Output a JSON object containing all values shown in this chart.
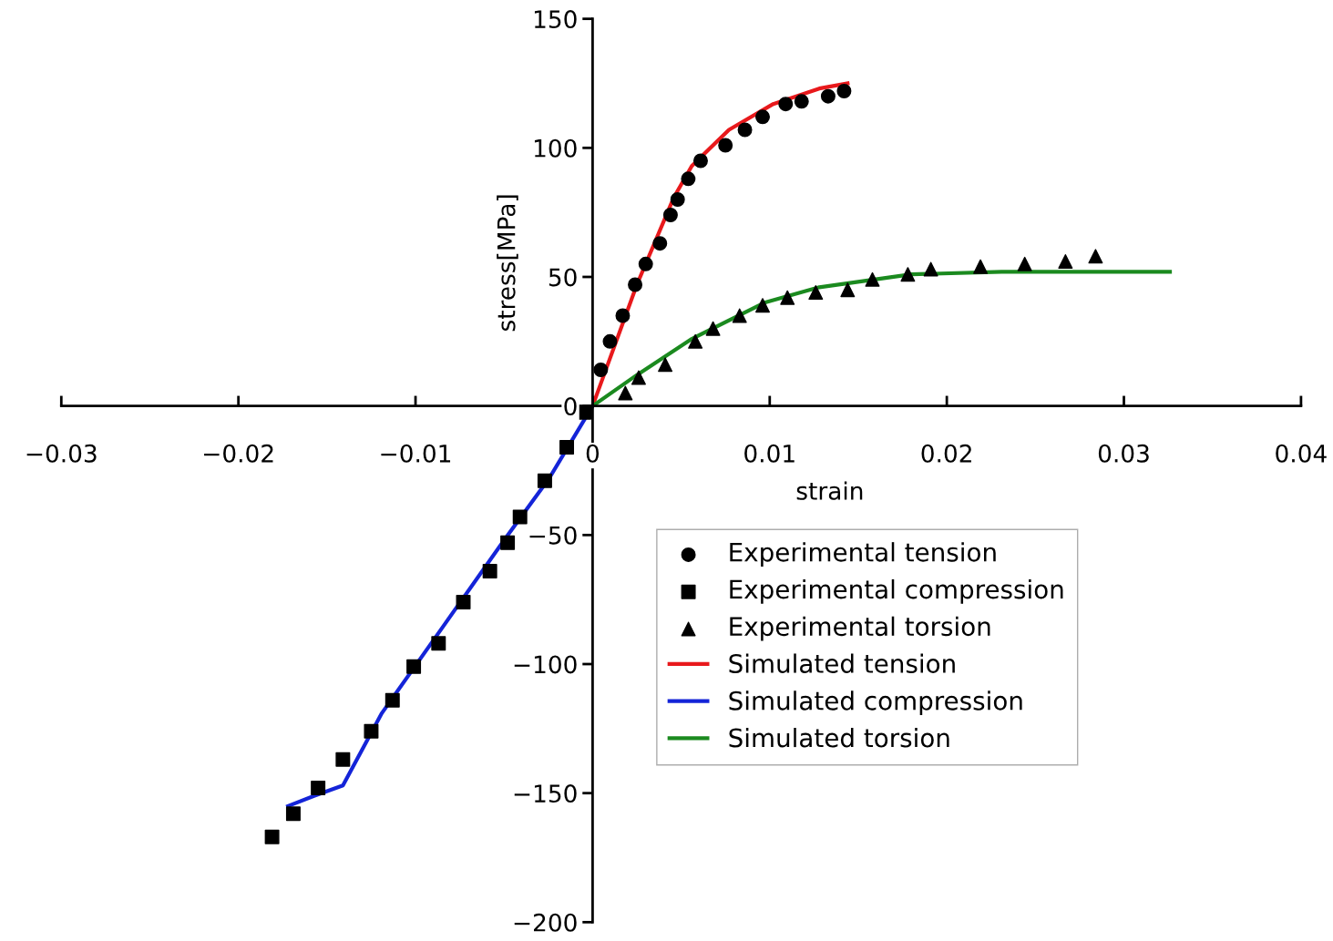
{
  "chart_data": {
    "type": "scatter",
    "xlabel": "strain",
    "ylabel": "stress[MPa]",
    "xlim": [
      -0.03,
      0.04
    ],
    "ylim": [
      -200,
      150
    ],
    "xticks": [
      -0.03,
      -0.02,
      -0.01,
      {
        "value": 0,
        "label": "0"
      },
      0.01,
      0.02,
      0.03,
      0.04
    ],
    "yticks": [
      -200,
      -150,
      -100,
      -50,
      0,
      50,
      100,
      150
    ],
    "grid": false,
    "legend": "bottom right",
    "series": [
      {
        "name": "Experimental tension",
        "marker": "circle",
        "color": "#000000",
        "x": [
          0.00046,
          0.00098,
          0.0017,
          0.0024,
          0.003,
          0.0038,
          0.0044,
          0.0048,
          0.0054,
          0.0061,
          0.0075,
          0.0086,
          0.0096,
          0.0109,
          0.0118,
          0.0133,
          0.0142
        ],
        "values": [
          14,
          25,
          35,
          47,
          55,
          63,
          74,
          80,
          88,
          95,
          101,
          107,
          112,
          117,
          118,
          120,
          122
        ]
      },
      {
        "name": "Experimental compression",
        "marker": "square",
        "color": "#000000",
        "x": [
          -0.00048,
          -0.00146,
          -0.0027,
          -0.0041,
          -0.0048,
          -0.0058,
          -0.0073,
          -0.0087,
          -0.0101,
          -0.0113,
          -0.0125,
          -0.0141,
          -0.0155,
          -0.0169,
          -0.0181
        ],
        "values": [
          -2.5,
          -16,
          -29,
          -43,
          -53,
          -64,
          -76,
          -92,
          -101,
          -114,
          -126,
          -137,
          -148,
          -158,
          -167
        ]
      },
      {
        "name": "Experimental torsion",
        "marker": "triangle",
        "color": "#000000",
        "x": [
          0.00185,
          0.0026,
          0.0041,
          0.0058,
          0.0068,
          0.0083,
          0.0096,
          0.011,
          0.0126,
          0.0144,
          0.0158,
          0.0178,
          0.0191,
          0.0219,
          0.0244,
          0.0267,
          0.0284
        ],
        "values": [
          5,
          11,
          16,
          25,
          30,
          35,
          39,
          42,
          44,
          45,
          49,
          51,
          53,
          54,
          55,
          56,
          58
        ]
      },
      {
        "name": "Simulated tension",
        "type": "line",
        "marker": "none",
        "line_style": "solid",
        "color": "#e8191c",
        "x": [
          0,
          0.0025,
          0.0046,
          0.0056,
          0.0077,
          0.0102,
          0.0128,
          0.0144
        ],
        "values": [
          0,
          47,
          81,
          93,
          107,
          117,
          123,
          125
        ]
      },
      {
        "name": "Simulated compression",
        "type": "line",
        "marker": "none",
        "line_style": "solid",
        "color": "#1424d8",
        "x": [
          0,
          -0.00245,
          -0.005,
          -0.0085,
          -0.0119,
          -0.0141,
          -0.0157,
          -0.0172
        ],
        "values": [
          0,
          -28,
          -52,
          -86,
          -119,
          -147,
          -151,
          -155
        ]
      },
      {
        "name": "Simulated torsion",
        "type": "line",
        "marker": "none",
        "line_style": "solid",
        "color": "#1b8a1f",
        "x": [
          0,
          0.0025,
          0.0056,
          0.0097,
          0.0128,
          0.018,
          0.0231,
          0.0326
        ],
        "values": [
          0,
          12,
          26,
          40,
          46,
          51,
          52,
          52
        ]
      }
    ]
  }
}
